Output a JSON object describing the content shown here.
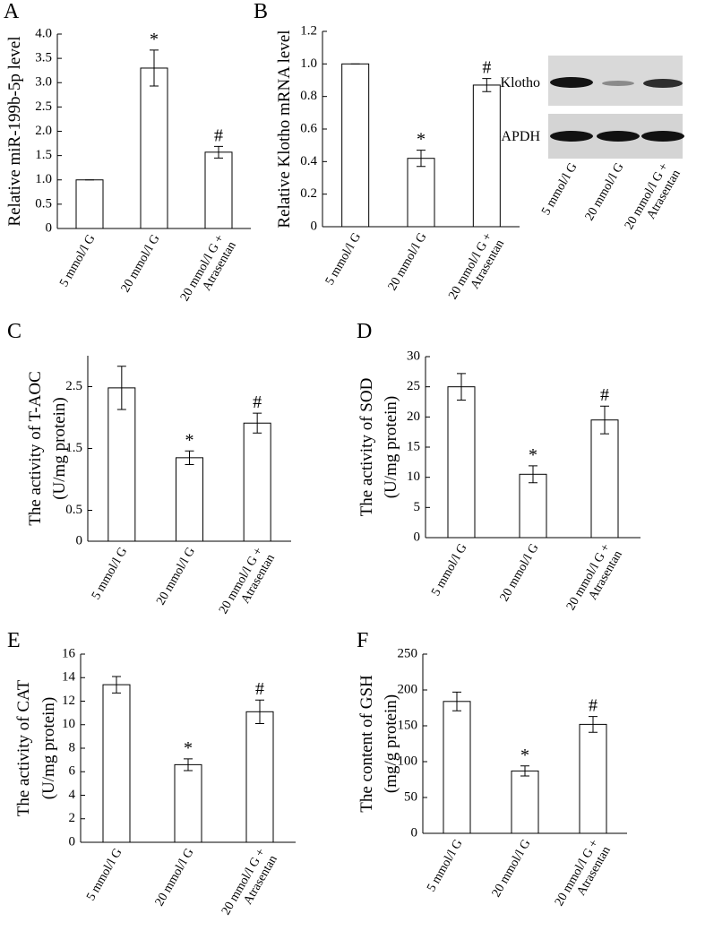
{
  "chart_data": [
    {
      "type": "bar",
      "panel": "A",
      "ylabel": [
        "Relative miR-199b-5p level"
      ],
      "categories": [
        "5 mmol/l G",
        "20 mmol/l G",
        "20 mmol/l G + Atrasentan"
      ],
      "values": [
        1.0,
        3.3,
        1.57
      ],
      "errors": [
        0,
        0.37,
        0.12
      ],
      "markers": [
        null,
        "*",
        "#"
      ],
      "ylim": [
        0,
        4.0
      ],
      "yticks": [
        0,
        0.5,
        {
          "value": 1,
          "label": "1.0"
        },
        1.5,
        {
          "value": 2,
          "label": "2.0"
        },
        2.5,
        {
          "value": 3,
          "label": "3.0"
        },
        3.5,
        {
          "value": 4,
          "label": "4.0"
        }
      ],
      "color": "#ffffff"
    },
    {
      "type": "bar",
      "panel": "B",
      "ylabel": [
        "Relative Klotho mRNA level"
      ],
      "categories": [
        "5 mmol/l G",
        "20 mmol/l G",
        "20 mmol/l G + Atrasentan"
      ],
      "values": [
        1.0,
        0.42,
        0.87
      ],
      "errors": [
        0,
        0.05,
        0.04
      ],
      "markers": [
        null,
        "*",
        "#"
      ],
      "ylim": [
        0,
        1.2
      ],
      "yticks": [
        0,
        0.2,
        0.4,
        0.6,
        0.8,
        {
          "value": 1,
          "label": "1.0"
        },
        1.2
      ],
      "color": "#ffffff"
    },
    {
      "type": "bar",
      "panel": "C",
      "ylabel": [
        "The activity of T-AOC",
        "(U/mg protein)"
      ],
      "categories": [
        "5 mmol/l G",
        "20 mmol/l G",
        "20 mmol/l G + Atrasentan"
      ],
      "values": [
        2.48,
        1.35,
        1.91
      ],
      "errors": [
        0.35,
        0.11,
        0.16
      ],
      "markers": [
        null,
        "*",
        "#"
      ],
      "ylim": [
        0,
        3.0
      ],
      "yticks": [
        0,
        0.5,
        1.5,
        2.5
      ],
      "color": "#ffffff"
    },
    {
      "type": "bar",
      "panel": "D",
      "ylabel": [
        "The activity of SOD",
        "(U/mg protein)"
      ],
      "categories": [
        "5 mmol/l G",
        "20 mmol/l G",
        "20 mmol/l G + Atrasentan"
      ],
      "values": [
        25,
        10.5,
        19.5
      ],
      "errors": [
        2.2,
        1.4,
        2.3
      ],
      "markers": [
        null,
        "*",
        "#"
      ],
      "ylim": [
        0,
        30
      ],
      "yticks": [
        0,
        5,
        10,
        15,
        20,
        25,
        30
      ],
      "color": "#ffffff"
    },
    {
      "type": "bar",
      "panel": "E",
      "ylabel": [
        "The activity of CAT",
        "(U/mg protein)"
      ],
      "categories": [
        "5 mmol/l G",
        "20 mmol/l G",
        "20 mmol/l G + Atrasentan"
      ],
      "values": [
        13.4,
        6.6,
        11.1
      ],
      "errors": [
        0.7,
        0.5,
        1.0
      ],
      "markers": [
        null,
        "*",
        "#"
      ],
      "ylim": [
        0,
        16
      ],
      "yticks": [
        0,
        2,
        4,
        6,
        8,
        10,
        12,
        14,
        16
      ],
      "color": "#ffffff"
    },
    {
      "type": "bar",
      "panel": "F",
      "ylabel": [
        "The content of GSH",
        "(mg/g protein)"
      ],
      "categories": [
        "5 mmol/l G",
        "20 mmol/l G",
        "20 mmol/l G + Atrasentan"
      ],
      "values": [
        184,
        87,
        152
      ],
      "errors": [
        13,
        7,
        11
      ],
      "markers": [
        null,
        "*",
        "#"
      ],
      "ylim": [
        0,
        250
      ],
      "yticks": [
        0,
        50,
        100,
        150,
        200,
        250
      ],
      "color": "#ffffff"
    }
  ],
  "blot": {
    "rows": [
      "Klotho",
      "GAPDH"
    ],
    "lanes": [
      "5 mmol/l G",
      "20 mmol/l G",
      "20 mmol/l G + Atrasentan"
    ]
  }
}
